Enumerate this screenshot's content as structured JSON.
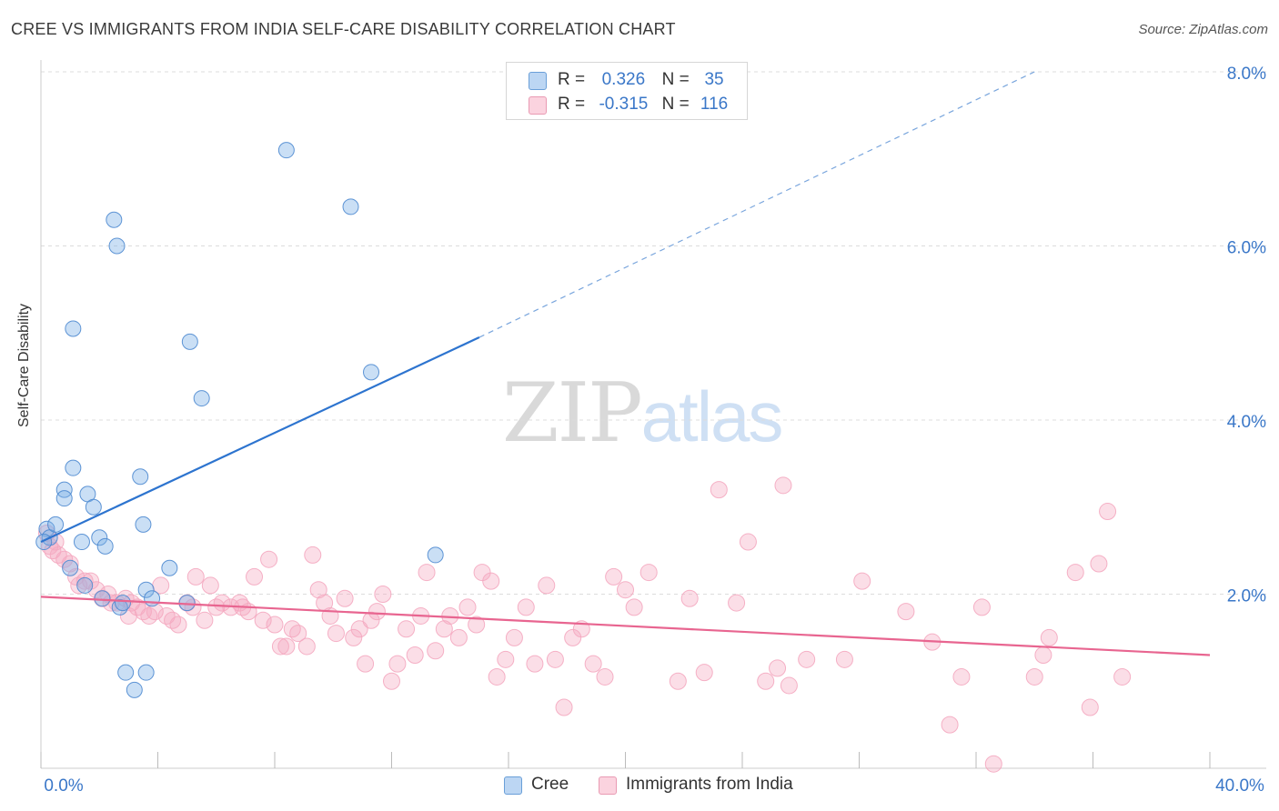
{
  "header": {
    "title": "CREE VS IMMIGRANTS FROM INDIA SELF-CARE DISABILITY CORRELATION CHART",
    "source": "Source: ZipAtlas.com"
  },
  "watermark": {
    "zip": "ZIP",
    "atlas": "atlas"
  },
  "legend": {
    "rows": [
      {
        "r_label": "R =",
        "r_value": "0.326",
        "n_label": "N =",
        "n_value": "35",
        "color": "#a9c9ef",
        "border": "#6a9fd8"
      },
      {
        "r_label": "R =",
        "r_value": "-0.315",
        "n_label": "N =",
        "n_value": "116",
        "color": "#f7c3d3",
        "border": "#e99ab3"
      }
    ]
  },
  "bottom_legend": {
    "cree": "Cree",
    "india": "Immigrants from India"
  },
  "chart_data": {
    "type": "scatter",
    "title": "CREE VS IMMIGRANTS FROM INDIA SELF-CARE DISABILITY CORRELATION CHART",
    "ylabel": "Self-Care Disability",
    "xlabel": "",
    "xlim": [
      0,
      40
    ],
    "ylim": [
      0,
      8
    ],
    "x_ticks_labels": [
      "0.0%",
      "40.0%"
    ],
    "y_ticks": [
      2,
      4,
      6,
      8
    ],
    "y_tick_labels": [
      "2.0%",
      "4.0%",
      "6.0%",
      "8.0%"
    ],
    "grid": "horizontal dashed",
    "legend_position": "top-center",
    "colors": {
      "cree": "#7aaee6",
      "cree_line": "#2d74cf",
      "india": "#f4a9c0",
      "india_line": "#e86590"
    },
    "series": [
      {
        "name": "Cree",
        "points": [
          [
            0.2,
            2.75
          ],
          [
            0.3,
            2.65
          ],
          [
            0.5,
            2.8
          ],
          [
            0.8,
            3.2
          ],
          [
            0.8,
            3.1
          ],
          [
            1.0,
            2.3
          ],
          [
            1.1,
            5.05
          ],
          [
            1.1,
            3.45
          ],
          [
            1.4,
            2.6
          ],
          [
            1.5,
            2.1
          ],
          [
            1.6,
            3.15
          ],
          [
            1.8,
            3.0
          ],
          [
            2.0,
            2.65
          ],
          [
            2.1,
            1.95
          ],
          [
            2.2,
            2.55
          ],
          [
            2.5,
            6.3
          ],
          [
            2.6,
            6.0
          ],
          [
            2.7,
            1.85
          ],
          [
            2.8,
            1.9
          ],
          [
            2.9,
            1.1
          ],
          [
            3.2,
            0.9
          ],
          [
            3.4,
            3.35
          ],
          [
            3.5,
            2.8
          ],
          [
            3.6,
            2.05
          ],
          [
            3.6,
            1.1
          ],
          [
            3.8,
            1.95
          ],
          [
            4.4,
            2.3
          ],
          [
            5.0,
            1.9
          ],
          [
            5.1,
            4.9
          ],
          [
            5.5,
            4.25
          ],
          [
            8.4,
            7.1
          ],
          [
            10.6,
            6.45
          ],
          [
            11.3,
            4.55
          ],
          [
            13.5,
            2.45
          ],
          [
            0.1,
            2.6
          ]
        ],
        "trend": {
          "x0": 0.0,
          "y0": 2.6,
          "x1": 15.0,
          "y1": 4.95,
          "dashed_to": [
            34.0,
            8.0
          ]
        }
      },
      {
        "name": "Immigrants from India",
        "points": [
          [
            0.2,
            2.7
          ],
          [
            0.3,
            2.55
          ],
          [
            0.4,
            2.5
          ],
          [
            0.6,
            2.45
          ],
          [
            0.8,
            2.4
          ],
          [
            1.0,
            2.35
          ],
          [
            1.3,
            2.1
          ],
          [
            1.5,
            2.15
          ],
          [
            1.7,
            2.15
          ],
          [
            1.9,
            2.05
          ],
          [
            2.1,
            1.95
          ],
          [
            2.3,
            2.0
          ],
          [
            2.6,
            1.9
          ],
          [
            2.9,
            1.95
          ],
          [
            3.1,
            1.9
          ],
          [
            3.3,
            1.85
          ],
          [
            3.5,
            1.8
          ],
          [
            3.7,
            1.75
          ],
          [
            3.9,
            1.8
          ],
          [
            4.1,
            2.1
          ],
          [
            4.3,
            1.75
          ],
          [
            4.5,
            1.7
          ],
          [
            4.7,
            1.65
          ],
          [
            5.0,
            1.9
          ],
          [
            5.3,
            2.2
          ],
          [
            5.6,
            1.7
          ],
          [
            5.8,
            2.1
          ],
          [
            6.0,
            1.85
          ],
          [
            6.2,
            1.9
          ],
          [
            6.5,
            1.85
          ],
          [
            6.8,
            1.9
          ],
          [
            7.1,
            1.8
          ],
          [
            7.3,
            2.2
          ],
          [
            7.6,
            1.7
          ],
          [
            7.8,
            2.4
          ],
          [
            8.0,
            1.65
          ],
          [
            8.2,
            1.4
          ],
          [
            8.4,
            1.4
          ],
          [
            8.6,
            1.6
          ],
          [
            8.8,
            1.55
          ],
          [
            9.1,
            1.4
          ],
          [
            9.3,
            2.45
          ],
          [
            9.5,
            2.05
          ],
          [
            9.7,
            1.9
          ],
          [
            9.9,
            1.75
          ],
          [
            10.1,
            1.55
          ],
          [
            10.4,
            1.95
          ],
          [
            10.7,
            1.5
          ],
          [
            10.9,
            1.6
          ],
          [
            11.1,
            1.2
          ],
          [
            11.3,
            1.7
          ],
          [
            11.5,
            1.8
          ],
          [
            11.7,
            2.0
          ],
          [
            12.0,
            1.0
          ],
          [
            12.2,
            1.2
          ],
          [
            12.5,
            1.6
          ],
          [
            12.8,
            1.3
          ],
          [
            13.0,
            1.75
          ],
          [
            13.2,
            2.25
          ],
          [
            13.5,
            1.35
          ],
          [
            13.8,
            1.6
          ],
          [
            14.0,
            1.75
          ],
          [
            14.3,
            1.5
          ],
          [
            14.6,
            1.85
          ],
          [
            14.9,
            1.65
          ],
          [
            15.1,
            2.25
          ],
          [
            15.4,
            2.15
          ],
          [
            15.6,
            1.05
          ],
          [
            15.9,
            1.25
          ],
          [
            16.2,
            1.5
          ],
          [
            16.6,
            1.85
          ],
          [
            16.9,
            1.2
          ],
          [
            17.3,
            2.1
          ],
          [
            17.6,
            1.25
          ],
          [
            17.9,
            0.7
          ],
          [
            18.2,
            1.5
          ],
          [
            18.5,
            1.6
          ],
          [
            18.9,
            1.2
          ],
          [
            19.3,
            1.05
          ],
          [
            19.6,
            2.2
          ],
          [
            20.0,
            2.05
          ],
          [
            20.3,
            1.85
          ],
          [
            20.8,
            2.25
          ],
          [
            21.8,
            1.0
          ],
          [
            22.2,
            1.95
          ],
          [
            22.7,
            1.1
          ],
          [
            23.2,
            3.2
          ],
          [
            23.8,
            1.9
          ],
          [
            24.2,
            2.6
          ],
          [
            24.8,
            1.0
          ],
          [
            25.2,
            1.15
          ],
          [
            25.4,
            3.25
          ],
          [
            25.6,
            0.95
          ],
          [
            26.2,
            1.25
          ],
          [
            27.5,
            1.25
          ],
          [
            28.1,
            2.15
          ],
          [
            29.6,
            1.8
          ],
          [
            30.5,
            1.45
          ],
          [
            31.1,
            0.5
          ],
          [
            31.5,
            1.05
          ],
          [
            32.2,
            1.85
          ],
          [
            32.6,
            0.05
          ],
          [
            34.0,
            1.05
          ],
          [
            34.3,
            1.3
          ],
          [
            34.5,
            1.5
          ],
          [
            35.4,
            2.25
          ],
          [
            35.9,
            0.7
          ],
          [
            36.2,
            2.35
          ],
          [
            36.5,
            2.95
          ],
          [
            37.0,
            1.05
          ],
          [
            0.5,
            2.6
          ],
          [
            1.2,
            2.2
          ],
          [
            2.4,
            1.9
          ],
          [
            3.0,
            1.75
          ],
          [
            5.2,
            1.85
          ],
          [
            6.9,
            1.85
          ]
        ],
        "trend": {
          "x0": 0.0,
          "y0": 1.97,
          "x1": 40.0,
          "y1": 1.3
        }
      }
    ]
  }
}
